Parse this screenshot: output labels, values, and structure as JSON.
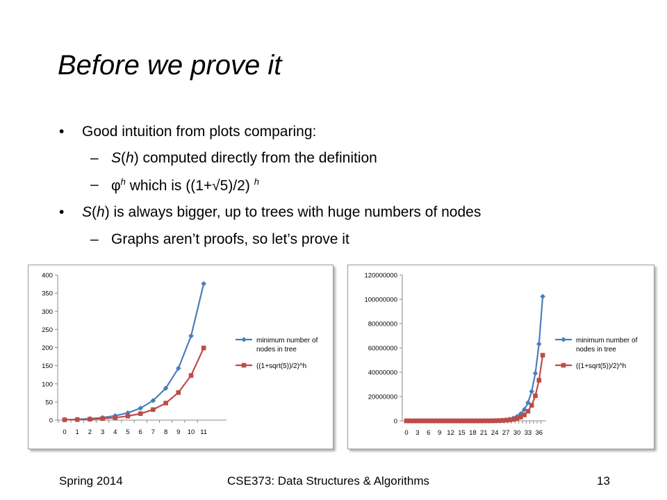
{
  "slide": {
    "title": "Before we prove it",
    "bullets": [
      {
        "marker": "•",
        "text": "Good intuition from plots comparing:"
      },
      {
        "marker": "–",
        "pre": "",
        "italic": "S",
        "mid": "(",
        "italic2": "h",
        "post": ") computed directly from the definition"
      },
      {
        "marker": "–",
        "phi": "φ",
        "sup": "h",
        "text2": " which is ((1+√5)/2) ",
        "sup2": "h"
      },
      {
        "marker": "•",
        "italic": "S",
        "mid": "(",
        "italic2": "h",
        "post": ") is always bigger, up to trees with huge numbers of nodes"
      },
      {
        "marker": "–",
        "text": "Graphs aren’t proofs, so let’s prove it"
      }
    ],
    "footer": {
      "left": "Spring 2014",
      "center": "CSE373: Data Structures & Algorithms",
      "right": "13"
    }
  },
  "chart_data": [
    {
      "type": "line",
      "x": [
        0,
        1,
        2,
        3,
        4,
        5,
        6,
        7,
        8,
        9,
        10,
        11
      ],
      "series": [
        {
          "name": "minimum number of nodes in tree",
          "color": "#4a7ebb",
          "marker": "diamond",
          "values": [
            1,
            2,
            4,
            7,
            12,
            20,
            33,
            54,
            88,
            143,
            232,
            376
          ]
        },
        {
          "name": "((1+sqrt(5))/2)^h",
          "color": "#be4b48",
          "marker": "square",
          "values": [
            1,
            1.618,
            2.618,
            4.236,
            6.854,
            11.09,
            17.94,
            29.03,
            46.98,
            76.01,
            122.99,
            199.0
          ]
        }
      ],
      "ylim": [
        0,
        400
      ],
      "yticks": [
        "0",
        "50",
        "100",
        "150",
        "200",
        "250",
        "300",
        "350",
        "400"
      ],
      "xticks": [
        "0",
        "1",
        "2",
        "3",
        "4",
        "5",
        "6",
        "7",
        "8",
        "9",
        "10",
        "11"
      ],
      "legend": "right"
    },
    {
      "type": "line",
      "x": [
        0,
        1,
        2,
        3,
        4,
        5,
        6,
        7,
        8,
        9,
        10,
        11,
        12,
        13,
        14,
        15,
        16,
        17,
        18,
        19,
        20,
        21,
        22,
        23,
        24,
        25,
        26,
        27,
        28,
        29,
        30,
        31,
        32,
        33,
        34,
        35,
        36,
        37
      ],
      "series": [
        {
          "name": "minimum number of nodes in tree",
          "color": "#4a7ebb",
          "marker": "diamond",
          "values": [
            1,
            2,
            4,
            7,
            12,
            20,
            33,
            54,
            88,
            143,
            232,
            376,
            609,
            986,
            1596,
            2583,
            4180,
            6764,
            10945,
            17710,
            28656,
            46367,
            75024,
            121392,
            196417,
            317810,
            514228,
            832039,
            1346268,
            2178308,
            3524577,
            5702886,
            9227464,
            14930351,
            24157816,
            39088168,
            63245985,
            102334154
          ]
        },
        {
          "name": "((1+sqrt(5))/2)^h",
          "color": "#be4b48",
          "marker": "square",
          "values": [
            1,
            1.618,
            2.618,
            4.236,
            6.854,
            11.09,
            17.94,
            29.03,
            46.98,
            76.01,
            122.99,
            199.0,
            322.0,
            521.0,
            843.0,
            1364.0,
            2207.0,
            3571.0,
            5778.0,
            9349.0,
            15127.0,
            24476.0,
            39603.0,
            64079.0,
            103682.0,
            167761.0,
            271443.0,
            439204.0,
            710647.0,
            1149851.0,
            1860498.0,
            3010349.0,
            4870847.0,
            7881196.0,
            12752043.0,
            20633239.0,
            33385282.0,
            54018521.0
          ]
        }
      ],
      "ylim": [
        0,
        120000000
      ],
      "yticks": [
        "0",
        "20000000",
        "40000000",
        "60000000",
        "80000000",
        "100000000",
        "120000000"
      ],
      "xticks": [
        "0",
        "3",
        "6",
        "9",
        "12",
        "15",
        "18",
        "21",
        "24",
        "27",
        "30",
        "33",
        "36"
      ],
      "legend": "right"
    }
  ]
}
